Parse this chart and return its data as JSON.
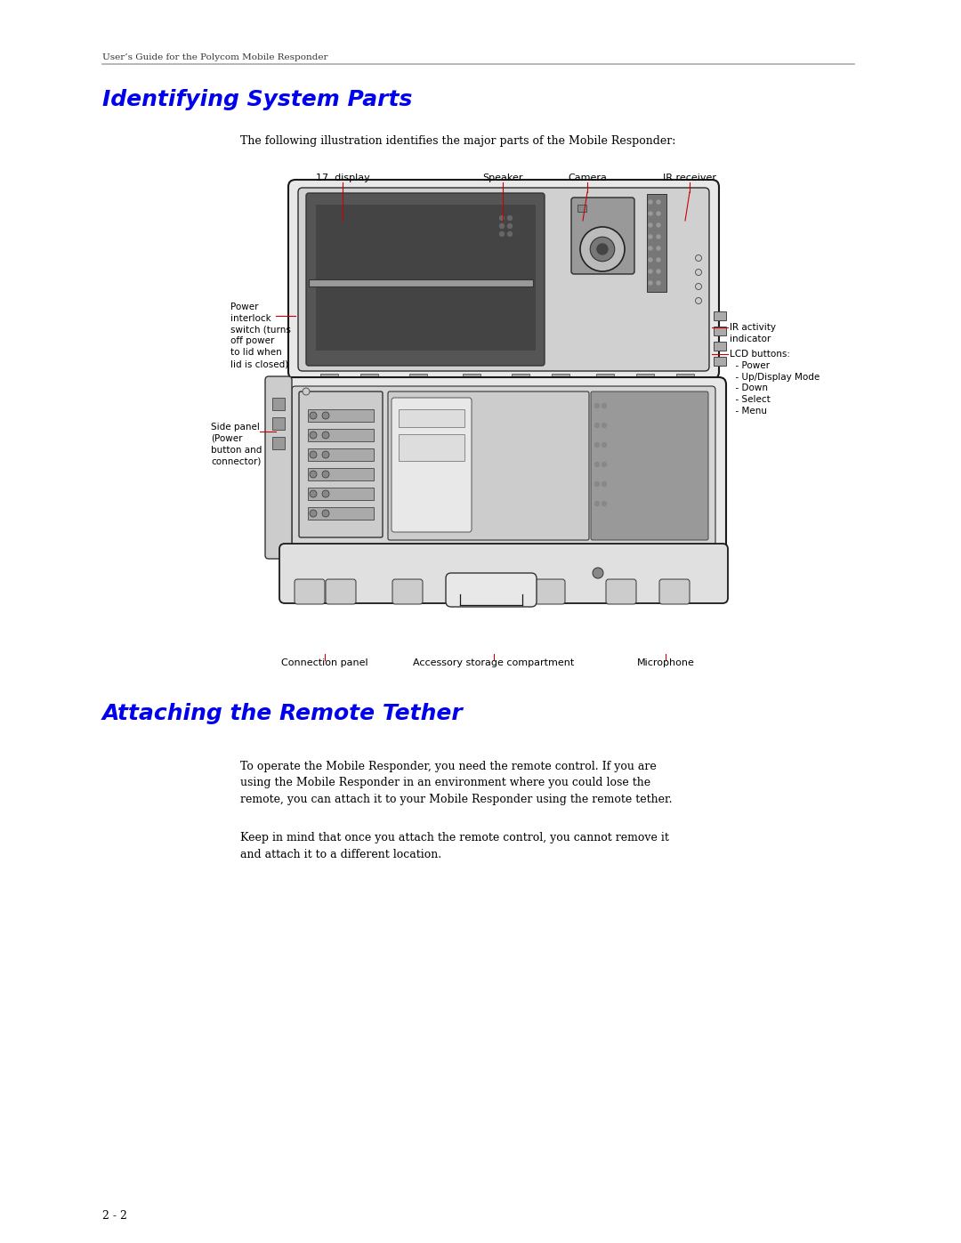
{
  "page_width": 10.8,
  "page_height": 13.97,
  "bg_color": "#ffffff",
  "header_text": "User’s Guide for the Polycom Mobile Responder",
  "header_fontsize": 7.5,
  "section1_title": "Identifying System Parts",
  "section1_title_color": "#0000ee",
  "section1_title_fontsize": 18,
  "section1_intro": "The following illustration identifies the major parts of the Mobile Responder:",
  "section2_title": "Attaching the Remote Tether",
  "section2_title_color": "#0000ee",
  "section2_title_fontsize": 18,
  "section2_para1": "To operate the Mobile Responder, you need the remote control. If you are\nusing the Mobile Responder in an environment where you could lose the\nremote, you can attach it to your Mobile Responder using the remote tether.",
  "section2_para2": "Keep in mind that once you attach the remote control, you cannot remove it\nand attach it to a different location.",
  "footer_text": "2 - 2",
  "line_color": "#cc0000",
  "label_fontsize": 8.0,
  "body_fontsize": 9.0
}
